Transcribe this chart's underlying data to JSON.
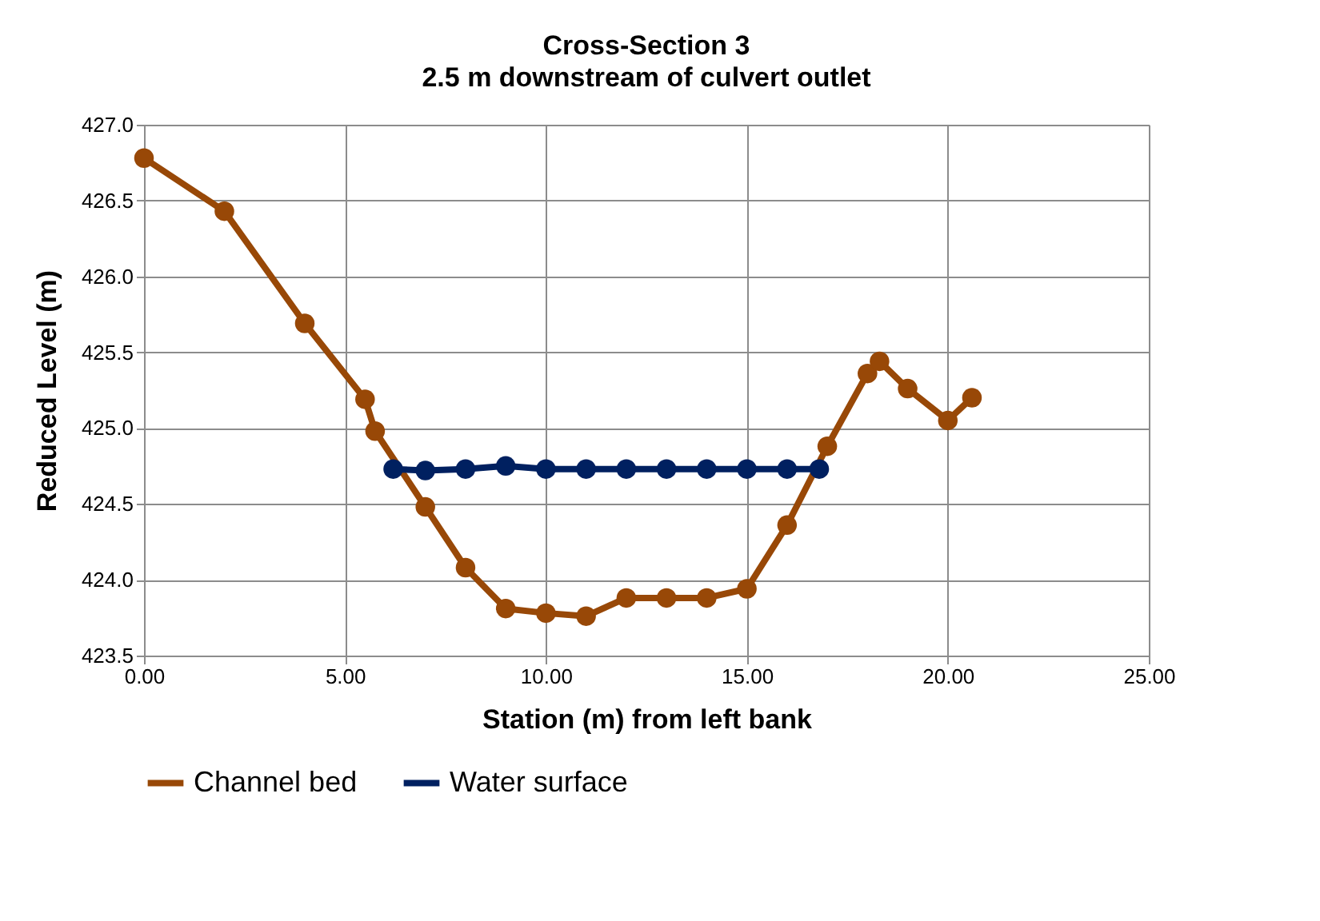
{
  "chart_data": {
    "type": "line",
    "title": "Cross-Section 3",
    "subtitle": "2.5 m downstream of culvert outlet",
    "xlabel": "Station (m) from left bank",
    "ylabel": "Reduced Level (m)",
    "xlim": [
      0,
      25
    ],
    "xticks": [
      {
        "value": 0,
        "label": "0.00"
      },
      {
        "value": 5,
        "label": "5.00"
      },
      {
        "value": 10,
        "label": "10.00"
      },
      {
        "value": 15,
        "label": "15.00"
      },
      {
        "value": 20,
        "label": "20.00"
      },
      {
        "value": 25,
        "label": "25.00"
      }
    ],
    "ylim": [
      423.5,
      427.0
    ],
    "yticks": [
      {
        "value": 423.5,
        "label": "423.5"
      },
      {
        "value": 424,
        "label": "424.0"
      },
      {
        "value": 424.5,
        "label": "424.5"
      },
      {
        "value": 425,
        "label": "425.0"
      },
      {
        "value": 425.5,
        "label": "425.5"
      },
      {
        "value": 426,
        "label": "426.0"
      },
      {
        "value": 426.5,
        "label": "426.5"
      },
      {
        "value": 427,
        "label": "427.0"
      }
    ],
    "grid": true,
    "legend": "bottom",
    "marker": "circle",
    "line_style": "solid",
    "series": [
      {
        "name": "Channel bed",
        "color": "#984807",
        "x": [
          0,
          2,
          4,
          5.5,
          5.75,
          7,
          8,
          9,
          10,
          11,
          12,
          13,
          14,
          15,
          16,
          17,
          18,
          18.3,
          19,
          20,
          20.6
        ],
        "values": [
          426.78,
          426.43,
          425.69,
          425.19,
          424.98,
          424.48,
          424.08,
          423.81,
          423.78,
          423.76,
          423.88,
          423.88,
          423.88,
          423.94,
          424.36,
          424.88,
          425.36,
          425.44,
          425.26,
          425.05,
          425.2
        ]
      },
      {
        "name": "Water surface",
        "color": "#002060",
        "x": [
          6.2,
          7,
          8,
          9,
          10,
          11,
          12,
          13,
          14,
          15,
          16,
          16.8
        ],
        "values": [
          424.73,
          424.72,
          424.73,
          424.75,
          424.73,
          424.73,
          424.73,
          424.73,
          424.73,
          424.73,
          424.73,
          424.73
        ]
      }
    ]
  }
}
